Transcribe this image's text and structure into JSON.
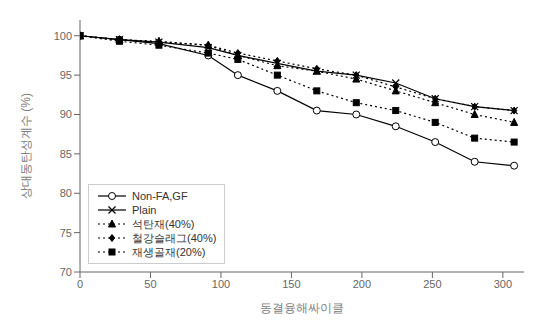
{
  "chart_data": {
    "type": "line",
    "xlabel": "동결융해싸이클",
    "ylabel": "상대동탄성계수 (%)",
    "x": [
      0,
      28,
      56,
      91,
      112,
      140,
      168,
      196,
      224,
      252,
      280,
      308
    ],
    "series": [
      {
        "name": "Non-FA,GF",
        "color": "#000000",
        "line_style": "solid",
        "marker": "circle",
        "values": [
          100,
          99.5,
          99.0,
          97.5,
          95.0,
          93.0,
          90.5,
          90.0,
          88.5,
          86.5,
          84.0,
          83.5
        ]
      },
      {
        "name": "Plain",
        "color": "#000000",
        "line_style": "solid",
        "marker": "x",
        "values": [
          100,
          99.5,
          99.2,
          98.5,
          97.5,
          96.5,
          95.5,
          95.0,
          94.0,
          92.0,
          91.0,
          90.5
        ]
      },
      {
        "name": "석탄재(40%)",
        "color": "#000000",
        "line_style": "dotted",
        "marker": "triangle",
        "values": [
          100,
          99.5,
          99.3,
          98.8,
          97.5,
          96.2,
          95.5,
          94.5,
          93.0,
          91.5,
          90.0,
          89.0
        ]
      },
      {
        "name": "철강슬래그(40%)",
        "color": "#000000",
        "line_style": "dotted",
        "marker": "diamond",
        "values": [
          100,
          99.5,
          99.2,
          98.8,
          97.8,
          96.8,
          95.8,
          95.0,
          93.5,
          92.0,
          91.0,
          90.5
        ]
      },
      {
        "name": "재생골재(20%)",
        "color": "#000000",
        "line_style": "dotted",
        "marker": "square",
        "values": [
          100,
          99.3,
          98.8,
          97.8,
          97.0,
          95.0,
          93.0,
          91.5,
          90.5,
          89.0,
          87.0,
          86.5
        ]
      }
    ],
    "xlim": [
      0,
      315
    ],
    "ylim": [
      70,
      102
    ],
    "xticks": [
      0,
      50,
      100,
      150,
      200,
      250,
      300
    ],
    "yticks": [
      70,
      75,
      80,
      85,
      90,
      95,
      100
    ],
    "grid": false,
    "legend": "lower left"
  }
}
